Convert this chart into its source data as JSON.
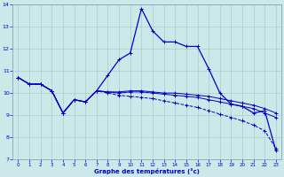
{
  "xlabel": "Graphe des températures (°c)",
  "bg_color": "#cce8e8",
  "line_color": "#0000cc",
  "grid_color": "#aacccc",
  "ylim": [
    7,
    14
  ],
  "xlim": [
    -0.5,
    23.5
  ],
  "yticks": [
    7,
    8,
    9,
    10,
    11,
    12,
    13,
    14
  ],
  "xticks": [
    0,
    1,
    2,
    3,
    4,
    5,
    6,
    7,
    8,
    9,
    10,
    11,
    12,
    13,
    14,
    15,
    16,
    17,
    18,
    19,
    20,
    21,
    22,
    23
  ],
  "series": {
    "main": [
      10.7,
      10.4,
      10.4,
      10.1,
      9.1,
      9.7,
      9.6,
      10.1,
      10.8,
      11.5,
      11.8,
      13.8,
      12.8,
      12.3,
      12.3,
      12.1,
      12.1,
      11.1,
      10.0,
      9.5,
      9.4,
      9.1,
      9.2,
      7.4
    ],
    "ref1": [
      10.7,
      10.4,
      10.4,
      10.1,
      9.1,
      9.7,
      9.6,
      10.1,
      10.05,
      10.05,
      10.1,
      10.1,
      10.05,
      10.0,
      10.0,
      9.95,
      9.9,
      9.85,
      9.75,
      9.65,
      9.55,
      9.45,
      9.3,
      9.1
    ],
    "ref2": [
      10.7,
      10.4,
      10.4,
      10.1,
      9.1,
      9.7,
      9.6,
      10.1,
      10.05,
      10.0,
      10.05,
      10.05,
      10.0,
      9.95,
      9.9,
      9.85,
      9.8,
      9.7,
      9.6,
      9.5,
      9.4,
      9.3,
      9.1,
      8.9
    ],
    "ref3": [
      10.7,
      10.4,
      10.4,
      10.1,
      9.1,
      9.7,
      9.6,
      10.1,
      10.0,
      9.9,
      9.85,
      9.8,
      9.75,
      9.65,
      9.55,
      9.45,
      9.35,
      9.2,
      9.05,
      8.9,
      8.75,
      8.55,
      8.3,
      7.5
    ]
  }
}
